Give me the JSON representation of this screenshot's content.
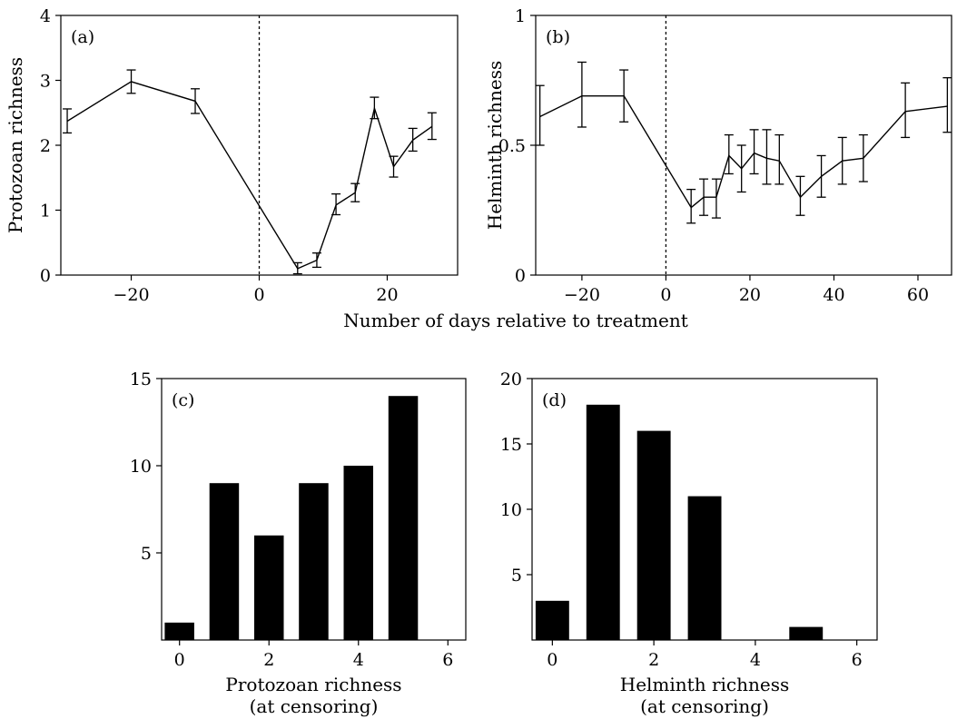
{
  "shared": {
    "xlabel": "Number of days relative to treatment"
  },
  "chart_data": [
    {
      "id": "a",
      "type": "line",
      "panel_label": "(a)",
      "ylabel": "Protozoan richness",
      "xlim": [
        -31,
        31
      ],
      "ylim": [
        0,
        4
      ],
      "xticks": [
        -20,
        0,
        20
      ],
      "xtick_labels": [
        "−20",
        "0",
        "20"
      ],
      "yticks": [
        0,
        1,
        2,
        3,
        4
      ],
      "ytick_labels": [
        "0",
        "1",
        "2",
        "3",
        "4"
      ],
      "treatment_line_x": 0,
      "points": [
        {
          "x": -30,
          "y": 2.37,
          "lo": 2.19,
          "hi": 2.56
        },
        {
          "x": -20,
          "y": 2.98,
          "lo": 2.8,
          "hi": 3.16
        },
        {
          "x": -10,
          "y": 2.68,
          "lo": 2.49,
          "hi": 2.87
        },
        {
          "x": 6,
          "y": 0.1,
          "lo": 0.02,
          "hi": 0.19
        },
        {
          "x": 9,
          "y": 0.23,
          "lo": 0.12,
          "hi": 0.34
        },
        {
          "x": 12,
          "y": 1.08,
          "lo": 0.93,
          "hi": 1.25
        },
        {
          "x": 15,
          "y": 1.27,
          "lo": 1.13,
          "hi": 1.41
        },
        {
          "x": 18,
          "y": 2.57,
          "lo": 2.41,
          "hi": 2.74
        },
        {
          "x": 21,
          "y": 1.67,
          "lo": 1.51,
          "hi": 1.83
        },
        {
          "x": 24,
          "y": 2.08,
          "lo": 1.91,
          "hi": 2.26
        },
        {
          "x": 27,
          "y": 2.29,
          "lo": 2.09,
          "hi": 2.5
        }
      ]
    },
    {
      "id": "b",
      "type": "line",
      "panel_label": "(b)",
      "ylabel": "Helminth richness",
      "xlim": [
        -31,
        68
      ],
      "ylim": [
        0,
        1
      ],
      "xticks": [
        -20,
        0,
        20,
        40,
        60
      ],
      "xtick_labels": [
        "−20",
        "0",
        "20",
        "40",
        "60"
      ],
      "yticks": [
        0,
        0.5,
        1
      ],
      "ytick_labels": [
        "0",
        "0.5",
        "1"
      ],
      "treatment_line_x": 0,
      "points": [
        {
          "x": -30,
          "y": 0.61,
          "lo": 0.5,
          "hi": 0.73
        },
        {
          "x": -20,
          "y": 0.69,
          "lo": 0.57,
          "hi": 0.82
        },
        {
          "x": -10,
          "y": 0.69,
          "lo": 0.59,
          "hi": 0.79
        },
        {
          "x": 6,
          "y": 0.26,
          "lo": 0.2,
          "hi": 0.33
        },
        {
          "x": 9,
          "y": 0.3,
          "lo": 0.23,
          "hi": 0.37
        },
        {
          "x": 12,
          "y": 0.3,
          "lo": 0.22,
          "hi": 0.37
        },
        {
          "x": 15,
          "y": 0.46,
          "lo": 0.39,
          "hi": 0.54
        },
        {
          "x": 18,
          "y": 0.41,
          "lo": 0.32,
          "hi": 0.5
        },
        {
          "x": 21,
          "y": 0.47,
          "lo": 0.39,
          "hi": 0.56
        },
        {
          "x": 24,
          "y": 0.45,
          "lo": 0.35,
          "hi": 0.56
        },
        {
          "x": 27,
          "y": 0.44,
          "lo": 0.35,
          "hi": 0.54
        },
        {
          "x": 32,
          "y": 0.3,
          "lo": 0.23,
          "hi": 0.38
        },
        {
          "x": 37,
          "y": 0.38,
          "lo": 0.3,
          "hi": 0.46
        },
        {
          "x": 42,
          "y": 0.44,
          "lo": 0.35,
          "hi": 0.53
        },
        {
          "x": 47,
          "y": 0.45,
          "lo": 0.36,
          "hi": 0.54
        },
        {
          "x": 57,
          "y": 0.63,
          "lo": 0.53,
          "hi": 0.74
        },
        {
          "x": 67,
          "y": 0.65,
          "lo": 0.55,
          "hi": 0.76
        }
      ]
    },
    {
      "id": "c",
      "type": "bar",
      "panel_label": "(c)",
      "xlabel_lines": [
        "Protozoan richness",
        "(at censoring)"
      ],
      "xlim": [
        -0.4,
        6.4
      ],
      "ylim": [
        0,
        15
      ],
      "xticks": [
        0,
        2,
        4,
        6
      ],
      "xtick_labels": [
        "0",
        "2",
        "4",
        "6"
      ],
      "yticks": [
        5,
        10,
        15
      ],
      "ytick_labels": [
        "5",
        "10",
        "15"
      ],
      "categories": [
        0,
        1,
        2,
        3,
        4,
        5
      ],
      "values": [
        1,
        9,
        6,
        9,
        10,
        14
      ]
    },
    {
      "id": "d",
      "type": "bar",
      "panel_label": "(d)",
      "xlabel_lines": [
        "Helminth richness",
        "(at censoring)"
      ],
      "xlim": [
        -0.4,
        6.4
      ],
      "ylim": [
        0,
        20
      ],
      "xticks": [
        0,
        2,
        4,
        6
      ],
      "xtick_labels": [
        "0",
        "2",
        "4",
        "6"
      ],
      "yticks": [
        5,
        10,
        15,
        20
      ],
      "ytick_labels": [
        "5",
        "10",
        "15",
        "20"
      ],
      "categories": [
        0,
        1,
        2,
        3,
        4,
        5
      ],
      "values": [
        3,
        18,
        16,
        11,
        0,
        1
      ]
    }
  ]
}
